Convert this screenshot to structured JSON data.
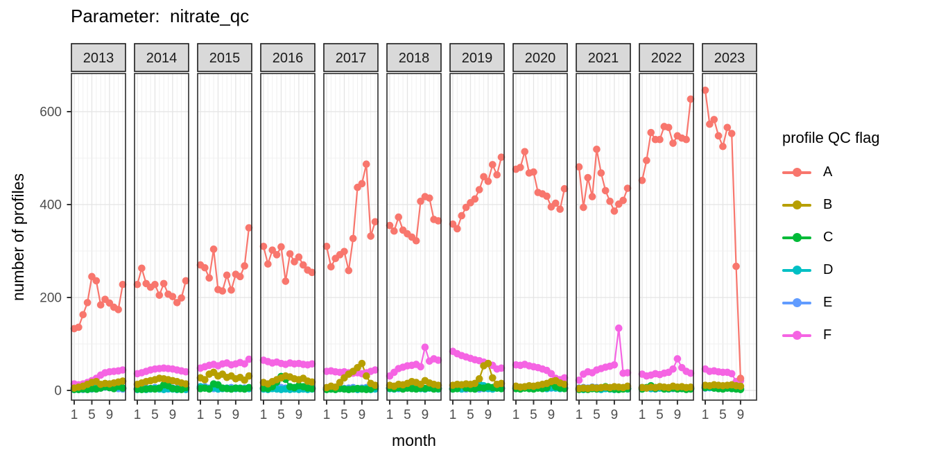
{
  "title": "Parameter:  nitrate_qc",
  "axes": {
    "x_title": "month",
    "y_title": "number of profiles",
    "x_tick_labels": [
      "1",
      "5",
      "9"
    ],
    "y_tick_labels": [
      "0",
      "200",
      "400",
      "600"
    ]
  },
  "legend": {
    "title": "profile QC flag",
    "entries": [
      {
        "label": "A",
        "color": "#F8766D"
      },
      {
        "label": "B",
        "color": "#B79F00"
      },
      {
        "label": "C",
        "color": "#00BA38"
      },
      {
        "label": "D",
        "color": "#00BFC4"
      },
      {
        "label": "E",
        "color": "#619CFF"
      },
      {
        "label": "F",
        "color": "#F564E3"
      }
    ]
  },
  "theme": {
    "strip_fill": "#D9D9D9",
    "strip_border": "#1a1a1a",
    "panel_fill": "#ffffff",
    "panel_border": "#2b2b2b",
    "grid_major": "#e4e4e4",
    "grid_minor": "#f0f0f0",
    "axis_text": "#4d4d4d",
    "tick_color": "#333333"
  },
  "chart_data": {
    "type": "line",
    "title": "Parameter: nitrate_qc",
    "xlabel": "month",
    "ylabel": "number of profiles",
    "x_breaks": [
      1,
      5,
      9
    ],
    "y_breaks": [
      0,
      200,
      400,
      600
    ],
    "y_minor_breaks": [
      100,
      300,
      500
    ],
    "ylim": [
      -20,
      680
    ],
    "xlim": [
      0.5,
      12.5
    ],
    "grid": true,
    "legend_position": "right",
    "series_names": [
      "A",
      "B",
      "C",
      "D",
      "E",
      "F"
    ],
    "series_colors": {
      "A": "#F8766D",
      "B": "#B79F00",
      "C": "#00BA38",
      "D": "#00BFC4",
      "E": "#619CFF",
      "F": "#F564E3"
    },
    "draw_order": [
      "E",
      "D",
      "C",
      "F",
      "B",
      "A"
    ],
    "facets": [
      {
        "year": "2013",
        "months": [
          1,
          2,
          3,
          4,
          5,
          6,
          7,
          8,
          9,
          10,
          11,
          12
        ],
        "series": {
          "A": [
            133,
            136,
            163,
            189,
            245,
            236,
            184,
            196,
            188,
            179,
            174,
            228
          ],
          "B": [
            5,
            7,
            9,
            13,
            17,
            19,
            13,
            15,
            14,
            16,
            18,
            20
          ],
          "C": [
            2,
            2,
            3,
            2,
            4,
            3,
            5,
            8,
            6,
            4,
            9,
            5
          ],
          "D": [
            3,
            2,
            4,
            3,
            5,
            6,
            10,
            12,
            14,
            10,
            7,
            5
          ],
          "E": [
            2,
            3,
            2,
            4,
            3,
            4,
            5,
            7,
            6,
            5,
            4,
            3
          ],
          "F": [
            14,
            12,
            14,
            17,
            21,
            26,
            33,
            38,
            40,
            41,
            42,
            44
          ]
        }
      },
      {
        "year": "2014",
        "months": [
          1,
          2,
          3,
          4,
          5,
          6,
          7,
          8,
          9,
          10,
          11,
          12
        ],
        "series": {
          "A": [
            228,
            263,
            230,
            222,
            228,
            205,
            230,
            207,
            202,
            189,
            199,
            236
          ],
          "B": [
            13,
            16,
            19,
            21,
            23,
            26,
            25,
            23,
            21,
            19,
            16,
            14
          ],
          "C": [
            3,
            2,
            3,
            4,
            3,
            5,
            12,
            10,
            4,
            3,
            2,
            6
          ],
          "D": [
            2,
            3,
            2,
            3,
            4,
            3,
            2,
            4,
            3,
            2,
            3,
            2
          ],
          "E": [
            4,
            3,
            5,
            4,
            6,
            5,
            4,
            3,
            5,
            4,
            3,
            5
          ],
          "F": [
            36,
            38,
            41,
            44,
            46,
            47,
            48,
            47,
            46,
            44,
            42,
            40
          ]
        }
      },
      {
        "year": "2015",
        "months": [
          1,
          2,
          3,
          4,
          5,
          6,
          7,
          8,
          9,
          10,
          11,
          12
        ],
        "series": {
          "A": [
            270,
            264,
            242,
            304,
            217,
            214,
            248,
            216,
            250,
            245,
            268,
            350
          ],
          "B": [
            27,
            23,
            35,
            39,
            31,
            35,
            28,
            31,
            25,
            28,
            22,
            31
          ],
          "C": [
            4,
            5,
            3,
            14,
            12,
            5,
            4,
            3,
            5,
            4,
            3,
            6
          ],
          "D": [
            8,
            5,
            4,
            6,
            3,
            4,
            5,
            3,
            4,
            5,
            3,
            4
          ],
          "E": [
            6,
            8,
            5,
            4,
            3,
            5,
            4,
            6,
            5,
            4,
            5,
            4
          ],
          "F": [
            48,
            51,
            54,
            56,
            53,
            57,
            59,
            55,
            57,
            60,
            57,
            67
          ]
        }
      },
      {
        "year": "2016",
        "months": [
          1,
          2,
          3,
          4,
          5,
          6,
          7,
          8,
          9,
          10,
          11,
          12
        ],
        "series": {
          "A": [
            310,
            272,
            302,
            292,
            309,
            235,
            294,
            277,
            287,
            270,
            259,
            254
          ],
          "B": [
            17,
            14,
            19,
            23,
            27,
            31,
            29,
            25,
            23,
            26,
            20,
            18
          ],
          "C": [
            5,
            4,
            8,
            18,
            30,
            24,
            8,
            6,
            10,
            8,
            5,
            4
          ],
          "D": [
            3,
            2,
            4,
            3,
            2,
            3,
            2,
            3,
            2,
            3,
            2,
            3
          ],
          "E": [
            4,
            3,
            5,
            4,
            6,
            5,
            4,
            6,
            5,
            4,
            5,
            6
          ],
          "F": [
            65,
            62,
            59,
            61,
            58,
            56,
            59,
            57,
            58,
            56,
            55,
            57
          ]
        }
      },
      {
        "year": "2017",
        "months": [
          1,
          2,
          3,
          4,
          5,
          6,
          7,
          8,
          9,
          10,
          11,
          12
        ],
        "series": {
          "A": [
            310,
            266,
            284,
            292,
            299,
            258,
            327,
            437,
            445,
            487,
            332,
            363
          ],
          "B": [
            6,
            9,
            7,
            17,
            27,
            35,
            41,
            49,
            58,
            31,
            15,
            11
          ],
          "C": [
            2,
            3,
            2,
            4,
            3,
            2,
            3,
            4,
            3,
            2,
            3,
            8
          ],
          "D": [
            2,
            3,
            2,
            4,
            3,
            2,
            3,
            2,
            3,
            4,
            2,
            3
          ],
          "E": [
            5,
            4,
            6,
            5,
            4,
            5,
            6,
            4,
            5,
            6,
            4,
            5
          ],
          "F": [
            41,
            42,
            40,
            39,
            40,
            38,
            37,
            38,
            36,
            38,
            41,
            44
          ]
        }
      },
      {
        "year": "2018",
        "months": [
          1,
          2,
          3,
          4,
          5,
          6,
          7,
          8,
          9,
          10,
          11,
          12
        ],
        "series": {
          "A": [
            355,
            343,
            373,
            345,
            337,
            330,
            322,
            407,
            417,
            414,
            368,
            365
          ],
          "B": [
            11,
            9,
            13,
            12,
            15,
            19,
            17,
            13,
            21,
            16,
            13,
            11
          ],
          "C": [
            5,
            4,
            6,
            3,
            5,
            4,
            3,
            5,
            4,
            6,
            3,
            4
          ],
          "D": [
            4,
            3,
            5,
            4,
            6,
            8,
            5,
            4,
            3,
            5,
            4,
            3
          ],
          "E": [
            6,
            5,
            4,
            6,
            5,
            4,
            6,
            5,
            4,
            5,
            6,
            5
          ],
          "F": [
            31,
            39,
            47,
            50,
            53,
            54,
            56,
            51,
            93,
            63,
            68,
            65
          ]
        }
      },
      {
        "year": "2019",
        "months": [
          1,
          2,
          3,
          4,
          5,
          6,
          7,
          8,
          9,
          10,
          11,
          12
        ],
        "series": {
          "A": [
            358,
            348,
            376,
            394,
            404,
            412,
            432,
            460,
            450,
            486,
            464,
            502
          ],
          "B": [
            11,
            13,
            12,
            14,
            13,
            15,
            25,
            53,
            58,
            27,
            13,
            15
          ],
          "C": [
            3,
            4,
            12,
            5,
            4,
            3,
            6,
            5,
            8,
            6,
            5,
            4
          ],
          "D": [
            3,
            4,
            3,
            12,
            6,
            3,
            14,
            10,
            4,
            3,
            5,
            4
          ],
          "E": [
            4,
            5,
            4,
            3,
            5,
            4,
            3,
            4,
            5,
            4,
            5,
            6
          ],
          "F": [
            84,
            79,
            75,
            72,
            69,
            66,
            64,
            61,
            58,
            54,
            46,
            48
          ]
        }
      },
      {
        "year": "2020",
        "months": [
          1,
          2,
          3,
          4,
          5,
          6,
          7,
          8,
          9,
          10,
          11,
          12
        ],
        "series": {
          "A": [
            476,
            480,
            514,
            468,
            470,
            426,
            423,
            418,
            395,
            403,
            390,
            434
          ],
          "B": [
            9,
            7,
            8,
            10,
            9,
            11,
            13,
            15,
            19,
            21,
            16,
            13
          ],
          "C": [
            4,
            3,
            5,
            4,
            3,
            5,
            4,
            6,
            16,
            8,
            5,
            4
          ],
          "D": [
            5,
            4,
            6,
            5,
            4,
            6,
            5,
            4,
            6,
            5,
            4,
            5
          ],
          "E": [
            6,
            5,
            7,
            6,
            5,
            6,
            7,
            6,
            5,
            7,
            8,
            6
          ],
          "F": [
            55,
            54,
            56,
            53,
            51,
            49,
            46,
            43,
            36,
            26,
            23,
            27
          ]
        }
      },
      {
        "year": "2021",
        "months": [
          1,
          2,
          3,
          4,
          5,
          6,
          7,
          8,
          9,
          10,
          11,
          12
        ],
        "series": {
          "A": [
            481,
            394,
            458,
            417,
            519,
            468,
            430,
            407,
            386,
            401,
            409,
            435
          ],
          "B": [
            4,
            5,
            4,
            6,
            5,
            6,
            7,
            6,
            8,
            7,
            6,
            9
          ],
          "C": [
            2,
            3,
            2,
            4,
            3,
            5,
            8,
            4,
            3,
            2,
            3,
            4
          ],
          "D": [
            3,
            2,
            3,
            4,
            3,
            2,
            4,
            3,
            2,
            3,
            4,
            3
          ],
          "E": [
            5,
            6,
            5,
            7,
            6,
            5,
            6,
            5,
            6,
            5,
            6,
            5
          ],
          "F": [
            22,
            35,
            40,
            38,
            44,
            47,
            50,
            52,
            55,
            134,
            37,
            38
          ]
        }
      },
      {
        "year": "2022",
        "months": [
          1,
          2,
          3,
          4,
          5,
          6,
          7,
          8,
          9,
          10,
          11,
          12
        ],
        "series": {
          "A": [
            452,
            495,
            555,
            540,
            540,
            568,
            566,
            532,
            548,
            543,
            540,
            627
          ],
          "B": [
            6,
            5,
            7,
            6,
            8,
            7,
            6,
            9,
            7,
            8,
            6,
            7
          ],
          "C": [
            3,
            6,
            10,
            4,
            8,
            3,
            4,
            5,
            3,
            4,
            2,
            3
          ],
          "D": [
            6,
            5,
            4,
            6,
            5,
            4,
            3,
            5,
            4,
            6,
            5,
            4
          ],
          "E": [
            4,
            5,
            4,
            3,
            5,
            4,
            5,
            4,
            5,
            4,
            3,
            4
          ],
          "F": [
            35,
            31,
            33,
            36,
            34,
            37,
            39,
            46,
            68,
            49,
            41,
            37
          ]
        }
      },
      {
        "year": "2023",
        "months": [
          1,
          2,
          3,
          4,
          5,
          6,
          7,
          8,
          9
        ],
        "series": {
          "A": [
            646,
            573,
            583,
            548,
            525,
            566,
            553,
            267,
            26
          ],
          "B": [
            11,
            10,
            12,
            11,
            10,
            11,
            12,
            10,
            9
          ],
          "C": [
            6,
            8,
            5,
            4,
            3,
            5,
            4,
            3,
            2
          ],
          "D": [
            8,
            6,
            10,
            7,
            5,
            6,
            5,
            4,
            3
          ],
          "E": [
            5,
            6,
            5,
            4,
            6,
            5,
            4,
            5,
            4
          ],
          "F": [
            46,
            41,
            42,
            40,
            39,
            39,
            36,
            19,
            21
          ]
        }
      }
    ]
  }
}
